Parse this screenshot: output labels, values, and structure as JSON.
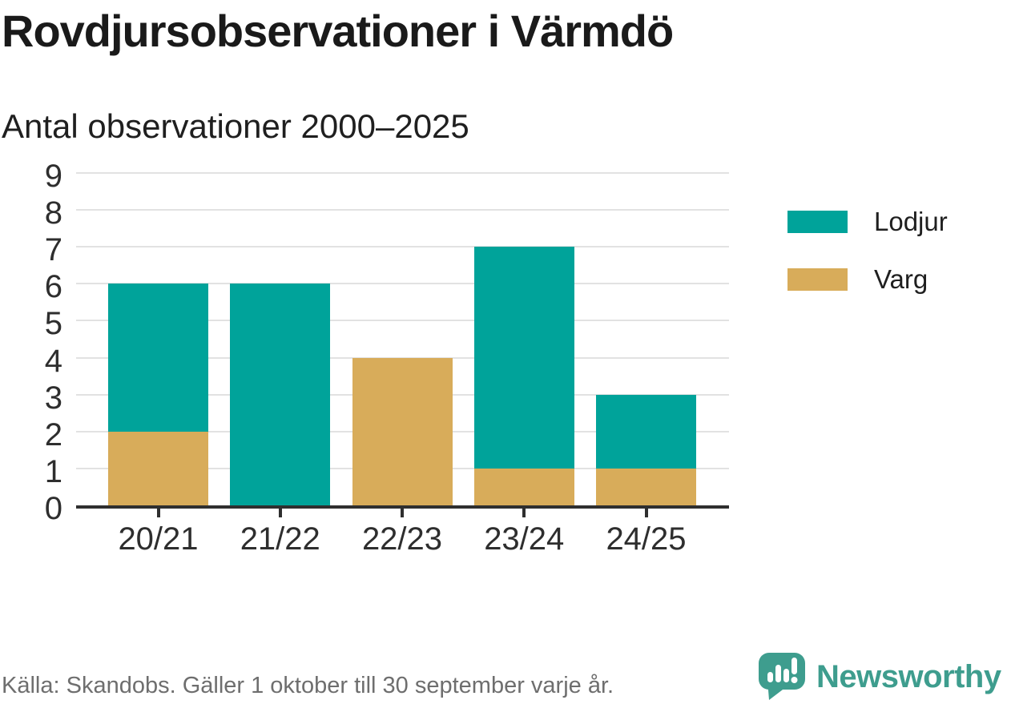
{
  "header": {
    "title": "Rovdjursobservationer i Värmdö",
    "subtitle": "Antal observationer 2000–2025"
  },
  "chart_data": {
    "type": "bar",
    "stacked": true,
    "title": "Rovdjursobservationer i Värmdö",
    "subtitle": "Antal observationer 2000–2025",
    "categories": [
      "20/21",
      "21/22",
      "22/23",
      "23/24",
      "24/25"
    ],
    "series": [
      {
        "name": "Varg",
        "color": "#d8ac5a",
        "values": [
          2,
          0,
          4,
          1,
          1
        ]
      },
      {
        "name": "Lodjur",
        "color": "#00a39a",
        "values": [
          4,
          6,
          0,
          6,
          2
        ]
      }
    ],
    "totals": [
      6,
      6,
      4,
      7,
      3
    ],
    "ylim": [
      0,
      9
    ],
    "yticks": [
      0,
      1,
      2,
      3,
      4,
      5,
      6,
      7,
      8,
      9
    ],
    "xlabel": "",
    "ylabel": "",
    "grid": true,
    "legend_position": "right"
  },
  "legend": {
    "items": [
      {
        "label": "Lodjur",
        "color": "#00a39a"
      },
      {
        "label": "Varg",
        "color": "#d8ac5a"
      }
    ]
  },
  "footer": {
    "source": "Källa: Skandobs. Gäller 1 oktober till 30 september varje år.",
    "brand": "Newsworthy"
  },
  "colors": {
    "lodjur": "#00a39a",
    "varg": "#d8ac5a",
    "axis": "#2f2f2f",
    "gridline": "#e2e2e2",
    "source_text": "#6e6e6e",
    "brand_teal": "#3e9d8e"
  }
}
